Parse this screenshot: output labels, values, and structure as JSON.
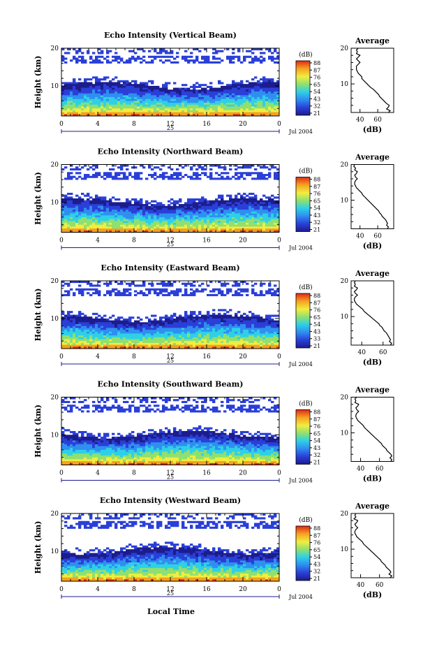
{
  "figure": {
    "bottom_xlabel": "Local Time",
    "date_label": "Jul 2004",
    "day_label": "25"
  },
  "chart_data": [
    {
      "type": "heatmap",
      "title": "Echo Intensity (Vertical Beam)",
      "ylabel": "Height (km)",
      "x_ticks": [
        "0",
        "4",
        "8",
        "12",
        "16",
        "20",
        "0"
      ],
      "y_ticks": [
        "10",
        "20"
      ],
      "xlim": [
        0,
        24
      ],
      "ylim": [
        2,
        20
      ],
      "colorbar": {
        "label": "(dB)",
        "ticks": [
          "88",
          "87",
          "76",
          "65",
          "54",
          "43",
          "32",
          "21"
        ]
      },
      "profile": {
        "title": "Average",
        "xlabel": "(dB)",
        "x_ticks": [
          "40",
          "60"
        ],
        "xlim": [
          30,
          78
        ],
        "y_ticks": [
          "10",
          "20"
        ],
        "height_km": [
          20,
          19.5,
          19,
          18.5,
          18,
          17.5,
          17,
          16.5,
          16,
          15.5,
          15,
          14.5,
          14,
          13.5,
          13,
          12.5,
          12,
          11.5,
          11,
          10.5,
          10,
          9.5,
          9,
          8.5,
          8,
          7.5,
          7,
          6.5,
          6,
          5.5,
          5,
          4.5,
          4,
          3.5,
          3,
          2.5,
          2
        ],
        "intensity_db": [
          38,
          36,
          37,
          36,
          40,
          38,
          36,
          38,
          40,
          38,
          36,
          36,
          36,
          37,
          38,
          40,
          42,
          42,
          44,
          46,
          48,
          50,
          52,
          55,
          57,
          59,
          61,
          62,
          64,
          66,
          68,
          70,
          73,
          72,
          70,
          74,
          72
        ]
      }
    },
    {
      "type": "heatmap",
      "title": "Echo Intensity (Northward Beam)",
      "ylabel": "Height (km)",
      "x_ticks": [
        "0",
        "4",
        "8",
        "12",
        "16",
        "20",
        "0"
      ],
      "y_ticks": [
        "10",
        "20"
      ],
      "xlim": [
        0,
        24
      ],
      "ylim": [
        2,
        20
      ],
      "colorbar": {
        "label": "(dB)",
        "ticks": [
          "88",
          "87",
          "76",
          "65",
          "54",
          "43",
          "32",
          "21"
        ]
      },
      "profile": {
        "title": "Average",
        "xlabel": "(dB)",
        "x_ticks": [
          "40",
          "60"
        ],
        "xlim": [
          30,
          78
        ],
        "y_ticks": [
          "10",
          "20"
        ],
        "height_km": [
          20,
          19.5,
          19,
          18.5,
          18,
          17.5,
          17,
          16.5,
          16,
          15.5,
          15,
          14.5,
          14,
          13.5,
          13,
          12.5,
          12,
          11.5,
          11,
          10.5,
          10,
          9.5,
          9,
          8.5,
          8,
          7.5,
          7,
          6.5,
          6,
          5.5,
          5,
          4.5,
          4,
          3.5,
          3,
          2.5,
          2
        ],
        "intensity_db": [
          34,
          33,
          35,
          34,
          37,
          36,
          34,
          35,
          37,
          35,
          34,
          34,
          35,
          36,
          38,
          40,
          42,
          43,
          45,
          47,
          49,
          51,
          53,
          55,
          57,
          59,
          61,
          62,
          64,
          65,
          67,
          69,
          70,
          71,
          70,
          72,
          71
        ]
      }
    },
    {
      "type": "heatmap",
      "title": "Echo Intensity (Eastward Beam)",
      "ylabel": "Height (km)",
      "x_ticks": [
        "0",
        "4",
        "8",
        "12",
        "16",
        "20",
        "0"
      ],
      "y_ticks": [
        "10",
        "20"
      ],
      "xlim": [
        0,
        24
      ],
      "ylim": [
        2,
        20
      ],
      "colorbar": {
        "label": "(dB)",
        "ticks": [
          "88",
          "87",
          "76",
          "65",
          "54",
          "43",
          "33",
          "21"
        ]
      },
      "profile": {
        "title": "Average",
        "xlabel": "(dB)",
        "x_ticks": [
          "40",
          "60"
        ],
        "xlim": [
          30,
          70
        ],
        "y_ticks": [
          "10",
          "20"
        ],
        "height_km": [
          20,
          19.5,
          19,
          18.5,
          18,
          17.5,
          17,
          16.5,
          16,
          15.5,
          15,
          14.5,
          14,
          13.5,
          13,
          12.5,
          12,
          11.5,
          11,
          10.5,
          10,
          9.5,
          9,
          8.5,
          8,
          7.5,
          7,
          6.5,
          6,
          5.5,
          5,
          4.5,
          4,
          3.5,
          3,
          2.5,
          2
        ],
        "intensity_db": [
          34,
          33,
          34,
          33,
          36,
          35,
          33,
          34,
          36,
          34,
          33,
          33,
          34,
          35,
          37,
          39,
          41,
          42,
          44,
          46,
          48,
          50,
          52,
          54,
          56,
          57,
          59,
          60,
          61,
          63,
          64,
          65,
          66,
          67,
          66,
          68,
          67
        ]
      }
    },
    {
      "type": "heatmap",
      "title": "Echo Intensity (Southward Beam)",
      "ylabel": "Height (km)",
      "x_ticks": [
        "0",
        "4",
        "8",
        "12",
        "16",
        "20",
        "0"
      ],
      "y_ticks": [
        "10",
        "20"
      ],
      "xlim": [
        0,
        24
      ],
      "ylim": [
        2,
        20
      ],
      "colorbar": {
        "label": "(dB)",
        "ticks": [
          "88",
          "87",
          "76",
          "65",
          "54",
          "43",
          "32",
          "21"
        ]
      },
      "profile": {
        "title": "Average",
        "xlabel": "(dB)",
        "x_ticks": [
          "40",
          "60"
        ],
        "xlim": [
          30,
          75
        ],
        "y_ticks": [
          "10",
          "20"
        ],
        "height_km": [
          20,
          19.5,
          19,
          18.5,
          18,
          17.5,
          17,
          16.5,
          16,
          15.5,
          15,
          14.5,
          14,
          13.5,
          13,
          12.5,
          12,
          11.5,
          11,
          10.5,
          10,
          9.5,
          9,
          8.5,
          8,
          7.5,
          7,
          6.5,
          6,
          5.5,
          5,
          4.5,
          4,
          3.5,
          3,
          2.5,
          2
        ],
        "intensity_db": [
          36,
          34,
          35,
          34,
          38,
          37,
          35,
          36,
          38,
          36,
          35,
          35,
          36,
          37,
          39,
          41,
          43,
          44,
          46,
          48,
          50,
          52,
          54,
          56,
          58,
          60,
          62,
          63,
          65,
          67,
          68,
          70,
          72,
          73,
          71,
          73,
          72
        ]
      }
    },
    {
      "type": "heatmap",
      "title": "Echo Intensity (Westward Beam)",
      "ylabel": "Height (km)",
      "x_ticks": [
        "0",
        "4",
        "8",
        "12",
        "16",
        "20",
        "0"
      ],
      "y_ticks": [
        "10",
        "20"
      ],
      "xlim": [
        0,
        24
      ],
      "ylim": [
        2,
        20
      ],
      "colorbar": {
        "label": "(dB)",
        "ticks": [
          "88",
          "87",
          "76",
          "65",
          "54",
          "43",
          "32",
          "21"
        ]
      },
      "profile": {
        "title": "Average",
        "xlabel": "(dB)",
        "x_ticks": [
          "40",
          "60"
        ],
        "xlim": [
          30,
          75
        ],
        "y_ticks": [
          "10",
          "20"
        ],
        "height_km": [
          20,
          19.5,
          19,
          18.5,
          18,
          17.5,
          17,
          16.5,
          16,
          15.5,
          15,
          14.5,
          14,
          13.5,
          13,
          12.5,
          12,
          11.5,
          11,
          10.5,
          10,
          9.5,
          9,
          8.5,
          8,
          7.5,
          7,
          6.5,
          6,
          5.5,
          5,
          4.5,
          4,
          3.5,
          3,
          2.5,
          2
        ],
        "intensity_db": [
          35,
          34,
          35,
          33,
          37,
          36,
          34,
          35,
          37,
          35,
          34,
          34,
          35,
          36,
          38,
          40,
          42,
          43,
          45,
          47,
          49,
          51,
          53,
          55,
          57,
          59,
          61,
          62,
          64,
          66,
          67,
          69,
          71,
          72,
          70,
          73,
          71
        ]
      }
    }
  ]
}
